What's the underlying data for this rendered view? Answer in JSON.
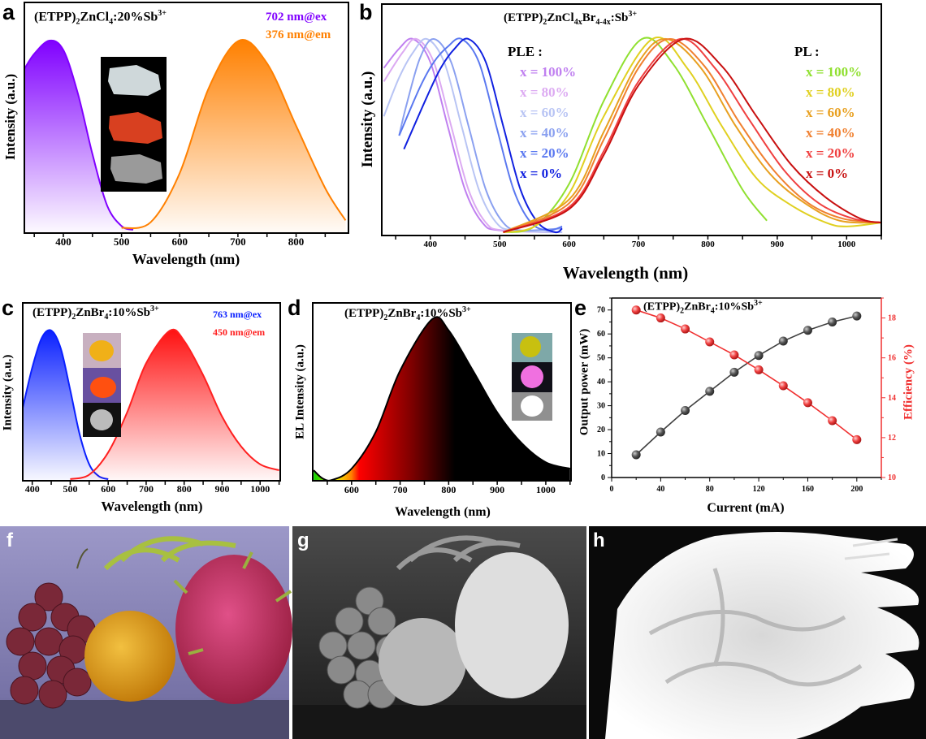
{
  "panels": {
    "a": "a",
    "b": "b",
    "c": "c",
    "d": "d",
    "e": "e",
    "f": "f",
    "g": "g",
    "h": "h"
  },
  "chart_data": [
    {
      "id": "a",
      "type": "area",
      "title": [
        [
          "(ETPP)",
          ""
        ],
        [
          "2",
          "sub"
        ],
        [
          "ZnCl",
          ""
        ],
        [
          "4",
          "sub"
        ],
        [
          ":20%Sb",
          ""
        ],
        [
          "3+",
          "sup"
        ]
      ],
      "xlabel": "Wavelength (nm)",
      "ylabel": "Intensity (a.u.)",
      "xlim": [
        333,
        890
      ],
      "xticks": [
        400,
        500,
        600,
        700,
        800
      ],
      "series": [
        {
          "name": "702 nm@ex",
          "color": "#8000ff",
          "points": [
            [
              333,
              0.85
            ],
            [
              350,
              0.93
            ],
            [
              376,
              1.0
            ],
            [
              400,
              0.95
            ],
            [
              425,
              0.72
            ],
            [
              450,
              0.4
            ],
            [
              475,
              0.13
            ],
            [
              500,
              0.02
            ],
            [
              520,
              0.0
            ]
          ]
        },
        {
          "name": "376 nm@em",
          "color": "#ff8000",
          "points": [
            [
              500,
              0.01
            ],
            [
              550,
              0.04
            ],
            [
              600,
              0.3
            ],
            [
              650,
              0.75
            ],
            [
              702,
              1.0
            ],
            [
              750,
              0.88
            ],
            [
              800,
              0.55
            ],
            [
              850,
              0.22
            ],
            [
              885,
              0.05
            ]
          ]
        }
      ],
      "inset_photos": [
        "white crystal",
        "red emitting crystal",
        "gray crystal"
      ]
    },
    {
      "id": "b",
      "type": "line",
      "title": [
        [
          "(ETPP)",
          ""
        ],
        [
          "2",
          "sub"
        ],
        [
          "ZnCl",
          ""
        ],
        [
          "4x",
          "sub"
        ],
        [
          "Br",
          ""
        ],
        [
          "4-4x",
          "sub"
        ],
        [
          ":Sb",
          ""
        ],
        [
          "3+",
          "sup"
        ]
      ],
      "xlabel": "Wavelength (nm)",
      "ylabel": "Intensity (a.u.)",
      "xlim": [
        330,
        1050
      ],
      "xticks": [
        400,
        500,
        600,
        700,
        800,
        900,
        1000
      ],
      "ple_header": "PLE :",
      "pl_header": "PL :",
      "ple_series": [
        {
          "name": "x = 100%",
          "color": "#c080f0",
          "points": [
            [
              333,
              0.85
            ],
            [
              355,
              0.95
            ],
            [
              375,
              1
            ],
            [
              400,
              0.88
            ],
            [
              425,
              0.55
            ],
            [
              450,
              0.22
            ],
            [
              475,
              0.05
            ],
            [
              500,
              0.01
            ],
            [
              590,
              0.0
            ]
          ]
        },
        {
          "name": "x = 80%",
          "color": "#dcaaf2",
          "points": [
            [
              333,
              0.78
            ],
            [
              360,
              0.93
            ],
            [
              380,
              1
            ],
            [
              405,
              0.88
            ],
            [
              430,
              0.55
            ],
            [
              455,
              0.22
            ],
            [
              480,
              0.05
            ],
            [
              505,
              0.01
            ],
            [
              590,
              0
            ]
          ]
        },
        {
          "name": "x = 60%",
          "color": "#b8c4f4",
          "points": [
            [
              333,
              0.6
            ],
            [
              355,
              0.8
            ],
            [
              375,
              0.93
            ],
            [
              395,
              1
            ],
            [
              420,
              0.88
            ],
            [
              445,
              0.55
            ],
            [
              470,
              0.22
            ],
            [
              495,
              0.05
            ],
            [
              520,
              0.01
            ],
            [
              590,
              0
            ]
          ]
        },
        {
          "name": "x = 40%",
          "color": "#8aa0f0",
          "points": [
            [
              355,
              0.5
            ],
            [
              365,
              0.65
            ],
            [
              385,
              0.9
            ],
            [
              405,
              1
            ],
            [
              430,
              0.88
            ],
            [
              455,
              0.55
            ],
            [
              480,
              0.22
            ],
            [
              505,
              0.05
            ],
            [
              530,
              0.01
            ],
            [
              590,
              0.02
            ]
          ]
        },
        {
          "name": "x = 20%",
          "color": "#5a78f0",
          "points": [
            [
              355,
              0.5
            ],
            [
              385,
              0.75
            ],
            [
              405,
              0.88
            ],
            [
              425,
              0.96
            ],
            [
              445,
              1
            ],
            [
              470,
              0.88
            ],
            [
              495,
              0.55
            ],
            [
              520,
              0.22
            ],
            [
              545,
              0.05
            ],
            [
              570,
              0.01
            ],
            [
              590,
              0.03
            ]
          ]
        },
        {
          "name": "x = 0%",
          "color": "#1020e0",
          "points": [
            [
              362,
              0.43
            ],
            [
              395,
              0.7
            ],
            [
              415,
              0.85
            ],
            [
              435,
              0.95
            ],
            [
              455,
              1
            ],
            [
              480,
              0.88
            ],
            [
              505,
              0.55
            ],
            [
              530,
              0.22
            ],
            [
              555,
              0.05
            ],
            [
              580,
              0.0
            ],
            [
              590,
              0.02
            ]
          ]
        }
      ],
      "pl_series": [
        {
          "name": "x = 100%",
          "color": "#90e030",
          "points": [
            [
              505,
              0
            ],
            [
              550,
              0.03
            ],
            [
              600,
              0.25
            ],
            [
              650,
              0.68
            ],
            [
              705,
              1
            ],
            [
              750,
              0.87
            ],
            [
              800,
              0.55
            ],
            [
              850,
              0.22
            ],
            [
              885,
              0.06
            ]
          ]
        },
        {
          "name": "x = 80%",
          "color": "#e0d020",
          "points": [
            [
              505,
              0
            ],
            [
              550,
              0.03
            ],
            [
              600,
              0.2
            ],
            [
              650,
              0.6
            ],
            [
              720,
              1
            ],
            [
              770,
              0.85
            ],
            [
              820,
              0.55
            ],
            [
              870,
              0.28
            ],
            [
              920,
              0.14
            ],
            [
              970,
              0.05
            ],
            [
              1000,
              0.03
            ],
            [
              1050,
              0.05
            ]
          ]
        },
        {
          "name": "x = 60%",
          "color": "#e8a020",
          "points": [
            [
              505,
              0
            ],
            [
              600,
              0.17
            ],
            [
              650,
              0.52
            ],
            [
              700,
              0.88
            ],
            [
              740,
              1
            ],
            [
              790,
              0.85
            ],
            [
              840,
              0.55
            ],
            [
              890,
              0.3
            ],
            [
              940,
              0.15
            ],
            [
              990,
              0.06
            ],
            [
              1050,
              0.05
            ]
          ]
        },
        {
          "name": "x = 40%",
          "color": "#f08030",
          "points": [
            [
              505,
              0
            ],
            [
              600,
              0.15
            ],
            [
              650,
              0.48
            ],
            [
              700,
              0.85
            ],
            [
              745,
              1
            ],
            [
              795,
              0.86
            ],
            [
              845,
              0.57
            ],
            [
              895,
              0.32
            ],
            [
              945,
              0.15
            ],
            [
              995,
              0.07
            ],
            [
              1050,
              0.05
            ]
          ]
        },
        {
          "name": "x = 20%",
          "color": "#f04040",
          "points": [
            [
              505,
              0
            ],
            [
              600,
              0.13
            ],
            [
              650,
              0.42
            ],
            [
              700,
              0.78
            ],
            [
              760,
              1
            ],
            [
              810,
              0.85
            ],
            [
              860,
              0.58
            ],
            [
              910,
              0.32
            ],
            [
              960,
              0.15
            ],
            [
              1010,
              0.07
            ],
            [
              1050,
              0.05
            ]
          ]
        },
        {
          "name": "x = 0%",
          "color": "#c81010",
          "points": [
            [
              505,
              0
            ],
            [
              600,
              0.12
            ],
            [
              650,
              0.4
            ],
            [
              700,
              0.76
            ],
            [
              765,
              1
            ],
            [
              820,
              0.86
            ],
            [
              870,
              0.6
            ],
            [
              920,
              0.35
            ],
            [
              970,
              0.18
            ],
            [
              1020,
              0.07
            ],
            [
              1050,
              0.05
            ]
          ]
        }
      ]
    },
    {
      "id": "c",
      "type": "area",
      "title": [
        [
          "(ETPP)",
          ""
        ],
        [
          "2",
          "sub"
        ],
        [
          "ZnBr",
          ""
        ],
        [
          "4",
          "sub"
        ],
        [
          ":10%Sb",
          ""
        ],
        [
          "3+",
          "sup"
        ]
      ],
      "xlabel": "Wavelength (nm)",
      "ylabel": "Intensity (a.u.)",
      "xlim": [
        375,
        1053
      ],
      "xticks": [
        400,
        500,
        600,
        700,
        800,
        900,
        1000
      ],
      "series": [
        {
          "name": "763 nm@ex",
          "color": "#0a20ff",
          "points": [
            [
              375,
              0.48
            ],
            [
              400,
              0.75
            ],
            [
              425,
              0.95
            ],
            [
              450,
              1
            ],
            [
              475,
              0.88
            ],
            [
              500,
              0.6
            ],
            [
              525,
              0.3
            ],
            [
              550,
              0.1
            ],
            [
              575,
              0.02
            ],
            [
              600,
              0
            ]
          ]
        },
        {
          "name": "450 nm@em",
          "color": "#ff2020",
          "points": [
            [
              500,
              0
            ],
            [
              550,
              0.03
            ],
            [
              600,
              0.18
            ],
            [
              650,
              0.45
            ],
            [
              700,
              0.78
            ],
            [
              763,
              1
            ],
            [
              800,
              0.93
            ],
            [
              850,
              0.7
            ],
            [
              900,
              0.42
            ],
            [
              950,
              0.22
            ],
            [
              1000,
              0.1
            ],
            [
              1050,
              0.06
            ]
          ]
        }
      ],
      "inset_photos": [
        "yellow crystal",
        "orange emitting crystal",
        "gray crystal"
      ]
    },
    {
      "id": "d",
      "type": "area",
      "title": [
        [
          "(ETPP)",
          ""
        ],
        [
          "2",
          "sub"
        ],
        [
          "ZnBr",
          ""
        ],
        [
          "4",
          "sub"
        ],
        [
          ":10%Sb",
          ""
        ],
        [
          "3+",
          "sup"
        ]
      ],
      "xlabel": "Wavelength (nm)",
      "ylabel": "EL Intensity (a.u.)",
      "xlim": [
        520,
        1052
      ],
      "xticks": [
        600,
        700,
        800,
        900,
        1000
      ],
      "series": [
        {
          "name": "EL",
          "color": "#000000",
          "points": [
            [
              522,
              0.06
            ],
            [
              540,
              0.01
            ],
            [
              560,
              0
            ],
            [
              600,
              0.07
            ],
            [
              650,
              0.3
            ],
            [
              700,
              0.68
            ],
            [
              766,
              1
            ],
            [
              800,
              0.93
            ],
            [
              850,
              0.68
            ],
            [
              900,
              0.42
            ],
            [
              950,
              0.23
            ],
            [
              1000,
              0.11
            ],
            [
              1050,
              0.07
            ]
          ]
        }
      ],
      "inset_photos": [
        "LED off",
        "LED under UV",
        "LED on"
      ]
    },
    {
      "id": "e",
      "type": "line",
      "title": [
        [
          "(ETPP)",
          ""
        ],
        [
          "2",
          "sub"
        ],
        [
          "ZnBr",
          ""
        ],
        [
          "4",
          "sub"
        ],
        [
          ":10%Sb",
          ""
        ],
        [
          "3+",
          "sup"
        ]
      ],
      "xlabel": "Current (mA)",
      "ylabel_left": "Output power (mW)",
      "ylabel_right": "Efficiency (%)",
      "xlim": [
        0,
        220
      ],
      "xticks": [
        0,
        40,
        80,
        120,
        160,
        200
      ],
      "ylim_left": [
        0,
        75
      ],
      "yticks_left": [
        0,
        10,
        20,
        30,
        40,
        50,
        60,
        70
      ],
      "ylim_right": [
        10,
        19
      ],
      "yticks_right": [
        10,
        12,
        14,
        16,
        18
      ],
      "x": [
        20,
        40,
        60,
        80,
        100,
        120,
        140,
        160,
        180,
        200
      ],
      "series": [
        {
          "name": "Output power",
          "axis": "left",
          "color": "#404040",
          "values": [
            9.5,
            19,
            28,
            36,
            44,
            51,
            57,
            61.5,
            65,
            67.5
          ]
        },
        {
          "name": "Efficiency",
          "axis": "right",
          "color": "#f03030",
          "values": [
            18.4,
            18.0,
            17.45,
            16.8,
            16.15,
            15.4,
            14.6,
            13.75,
            12.85,
            11.9
          ]
        }
      ]
    }
  ],
  "photos": [
    {
      "id": "f",
      "content": "grapes, orange and dragon fruit under LED light"
    },
    {
      "id": "g",
      "content": "same fruits in NIR imaging"
    },
    {
      "id": "h",
      "content": "NIR image of hand veins"
    }
  ]
}
